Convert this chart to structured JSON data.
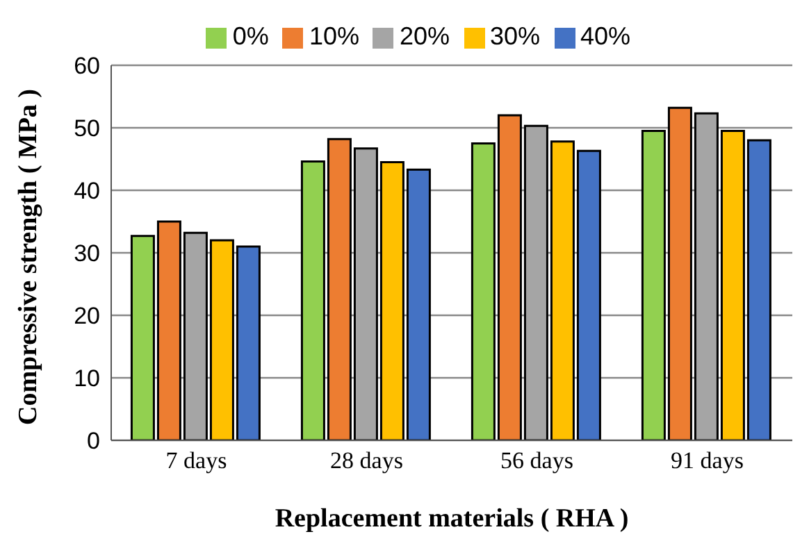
{
  "chart_data": {
    "type": "bar",
    "xlabel": "Replacement materials ( RHA )",
    "ylabel": "Compressive strength ( MPa )",
    "categories": [
      "7 days",
      "28 days",
      "56 days",
      "91 days"
    ],
    "series": [
      {
        "name": "0%",
        "color": "#92d050",
        "values": [
          32.7,
          44.6,
          47.5,
          49.5
        ]
      },
      {
        "name": "10%",
        "color": "#ed7d31",
        "values": [
          35,
          48.2,
          52,
          53.2
        ]
      },
      {
        "name": "20%",
        "color": "#a5a5a5",
        "values": [
          33.2,
          46.7,
          50.3,
          52.3
        ]
      },
      {
        "name": "30%",
        "color": "#ffc000",
        "values": [
          32,
          44.5,
          47.8,
          49.5
        ]
      },
      {
        "name": "40%",
        "color": "#4472c4",
        "values": [
          31,
          43.3,
          46.3,
          48
        ]
      }
    ],
    "ylim": [
      0,
      60
    ],
    "yticks": [
      0,
      10,
      20,
      30,
      40,
      50,
      60
    ],
    "grid": "y",
    "legend": "top"
  }
}
